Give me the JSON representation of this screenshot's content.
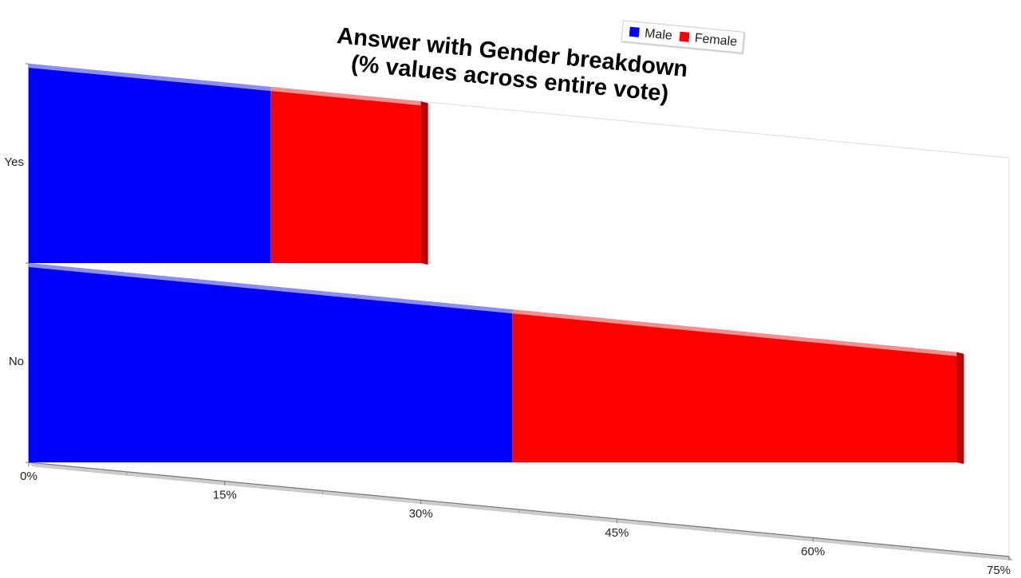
{
  "chart_data": {
    "type": "bar",
    "orientation": "horizontal",
    "stacked": true,
    "title": "Answer with Gender breakdown\n(% values across entire vote)",
    "categories": [
      "Yes",
      "No"
    ],
    "series": [
      {
        "name": "Male",
        "values": [
          18.5,
          37
        ],
        "color": "#0000ff"
      },
      {
        "name": "Female",
        "values": [
          11.5,
          34
        ],
        "color": "#ff0000"
      }
    ],
    "xlim": [
      0,
      75
    ],
    "x_ticks": [
      0,
      15,
      30,
      45,
      60,
      75
    ],
    "x_tick_labels": [
      "0%",
      "15%",
      "30%",
      "45%",
      "60%",
      "75%"
    ],
    "legend": {
      "position": "top-right",
      "items": [
        "Male",
        "Female"
      ]
    },
    "grid": false
  }
}
